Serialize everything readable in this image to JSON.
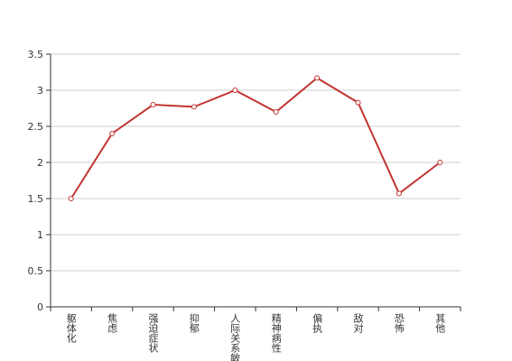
{
  "chart_data": {
    "type": "line",
    "categories": [
      "躯体化",
      "焦虑",
      "强迫症状",
      "抑郁",
      "人际关系敏感",
      "精神病性",
      "偏执",
      "敌对",
      "恐怖",
      "其他"
    ],
    "series": [
      {
        "color": "#c23531",
        "values": [
          1.5,
          2.4,
          2.8,
          2.77,
          3.0,
          2.7,
          3.17,
          2.83,
          1.57,
          2.0
        ]
      }
    ],
    "ylim": [
      0,
      3.5
    ],
    "yticks": [
      0,
      0.5,
      1,
      1.5,
      2,
      2.5,
      3,
      3.5
    ],
    "grid": true
  }
}
